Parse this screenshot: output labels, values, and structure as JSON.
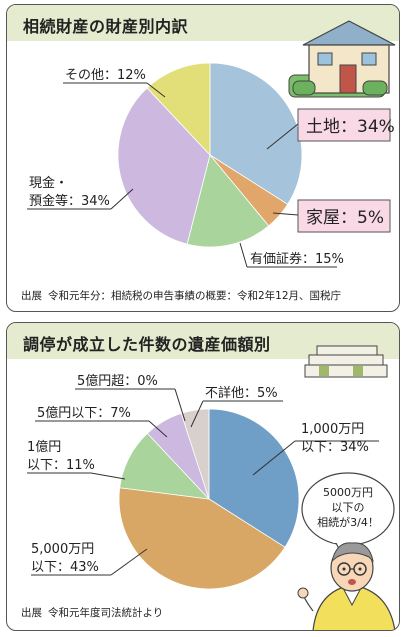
{
  "chart_data": [
    {
      "type": "pie",
      "title": "相続財産の財産別内訳",
      "categories": [
        "土地",
        "家屋",
        "有価証券",
        "現金・預金等",
        "その他"
      ],
      "values": [
        34,
        5,
        15,
        34,
        12
      ],
      "labels": {
        "land": "土地：34%",
        "house": "家屋：5%",
        "securities": "有価証券：15%",
        "cash_line1": "現金・",
        "cash_line2": "預金等：34%",
        "other": "その他：12%"
      },
      "colors": [
        "#a5c4dc",
        "#e0a66a",
        "#a9d49b",
        "#cdb9df",
        "#e3df78"
      ],
      "source_label": "出展",
      "source_text": "令和元年分：相続税の申告事績の概要：令和2年12月、国税庁"
    },
    {
      "type": "pie",
      "title": "調停が成立した件数の遺産価額別",
      "categories": [
        "1,000万円以下",
        "5,000万円以下",
        "1億円以下",
        "5億円以下",
        "5億円超",
        "不詳他"
      ],
      "values": [
        34,
        43,
        11,
        7,
        0,
        5
      ],
      "labels": {
        "l1000_line1": "1,000万円",
        "l1000_line2": "以下：34%",
        "l5000_line1": "5,000万円",
        "l5000_line2": "以下：43%",
        "l1oku_line1": "1億円",
        "l1oku_line2": "以下：11%",
        "l5oku": "5億円以下：7%",
        "l5okuover": "5億円超：0%",
        "unknown": "不詳他：5%"
      },
      "colors": [
        "#6f9fc6",
        "#d9a765",
        "#a9d49b",
        "#cdb9df",
        "#cdb9df",
        "#d8d0cc"
      ],
      "bubble_line1": "5000万円",
      "bubble_line2": "以下の",
      "bubble_line3": "相続が3/4！",
      "source_label": "出展",
      "source_text": "令和元年度司法統計より"
    }
  ]
}
